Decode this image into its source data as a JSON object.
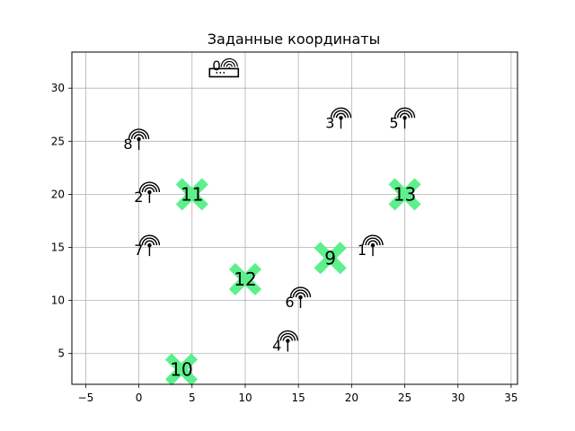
{
  "chart_data": {
    "type": "scatter",
    "title": "Заданные координаты",
    "xlabel": "",
    "ylabel": "",
    "xlim": [
      -6.3,
      35.6
    ],
    "ylim": [
      2.1,
      33.4
    ],
    "xticks": [
      -5,
      0,
      5,
      10,
      15,
      20,
      25,
      30,
      35
    ],
    "yticks": [
      5,
      10,
      15,
      20,
      25,
      30
    ],
    "grid": true,
    "router": {
      "label": "0",
      "x": 8,
      "y": 31.5
    },
    "antennas": [
      {
        "label": "1",
        "x": 22,
        "y": 15.2
      },
      {
        "label": "2",
        "x": 1,
        "y": 20.2
      },
      {
        "label": "3",
        "x": 19,
        "y": 27.2
      },
      {
        "label": "4",
        "x": 14,
        "y": 6.2
      },
      {
        "label": "5",
        "x": 25,
        "y": 27.2
      },
      {
        "label": "6",
        "x": 15.2,
        "y": 10.3
      },
      {
        "label": "7",
        "x": 1,
        "y": 15.2
      },
      {
        "label": "8",
        "x": 0,
        "y": 25.2
      }
    ],
    "crosses": [
      {
        "label": "9",
        "x": 18,
        "y": 14
      },
      {
        "label": "10",
        "x": 4,
        "y": 3.5
      },
      {
        "label": "11",
        "x": 5,
        "y": 20
      },
      {
        "label": "12",
        "x": 10,
        "y": 12
      },
      {
        "label": "13",
        "x": 25,
        "y": 20
      }
    ],
    "cross_color": "#5cf08c"
  }
}
